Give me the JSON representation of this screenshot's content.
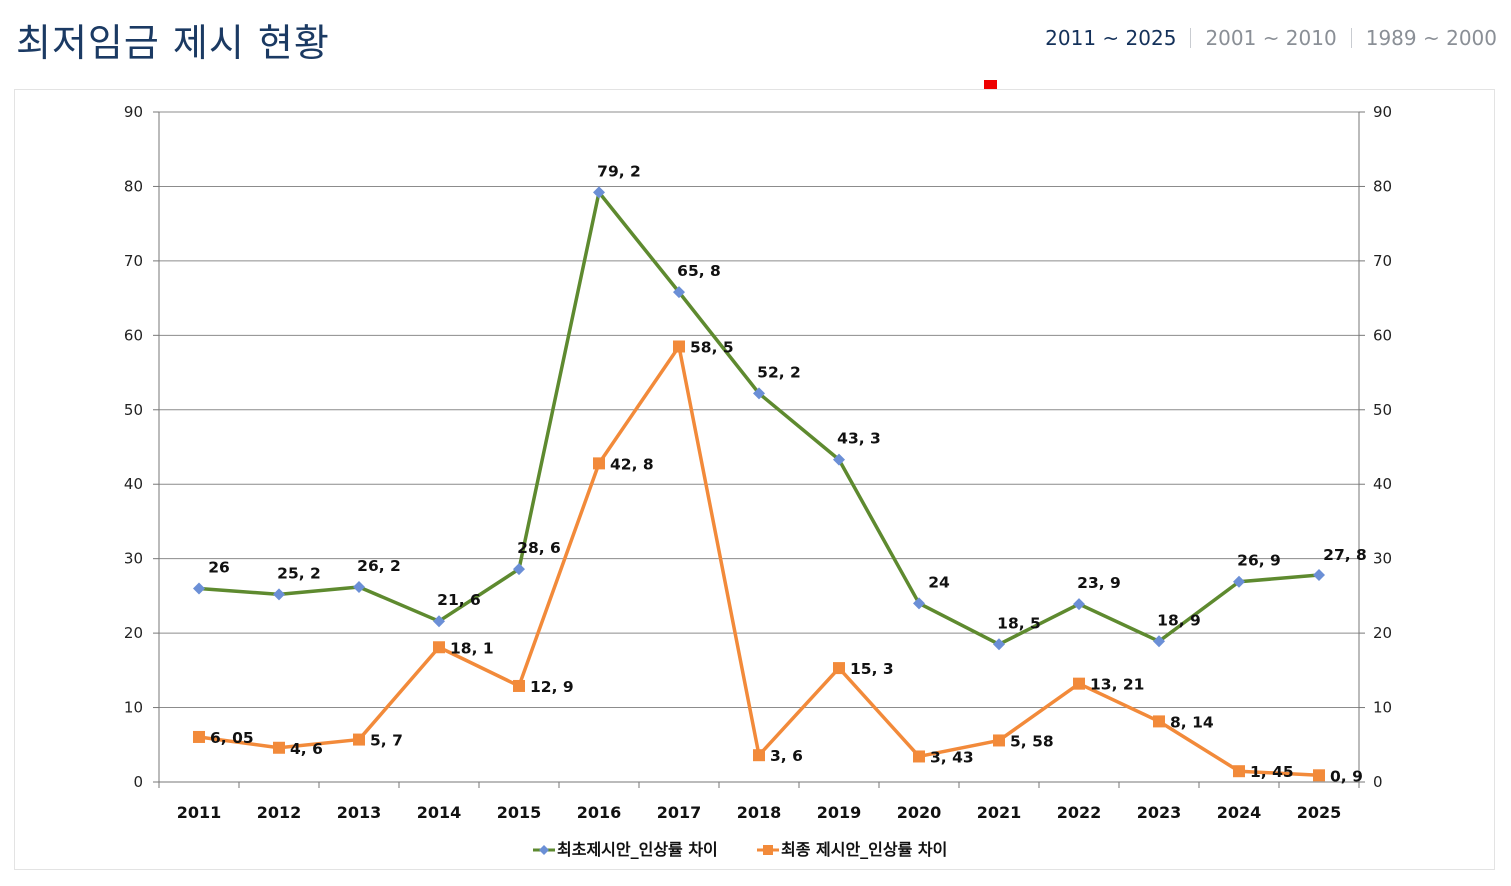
{
  "page": {
    "title": "최저임금 제시 현황",
    "tabs": [
      {
        "label": "2011 ~ 2025",
        "active": true
      },
      {
        "label": "2001 ~ 2010",
        "active": false
      },
      {
        "label": "1989 ~ 2000",
        "active": false
      }
    ]
  },
  "chart_data": {
    "type": "line",
    "title": "",
    "xlabel": "",
    "ylabel": "",
    "categories": [
      "2011",
      "2012",
      "2013",
      "2014",
      "2015",
      "2016",
      "2017",
      "2018",
      "2019",
      "2020",
      "2021",
      "2022",
      "2023",
      "2024",
      "2025"
    ],
    "series": [
      {
        "name": "최초제시안_인상률 차이",
        "color": "#5e8a2f",
        "marker": "diamond",
        "marker_color": "#6b8fd6",
        "values": [
          26,
          25.2,
          26.2,
          21.6,
          28.6,
          79.2,
          65.8,
          52.2,
          43.3,
          24,
          18.5,
          23.9,
          18.9,
          26.9,
          27.8
        ],
        "labels": [
          "26",
          "25, 2",
          "26, 2",
          "21, 6",
          "28, 6",
          "79, 2",
          "65, 8",
          "52, 2",
          "43, 3",
          "24",
          "18, 5",
          "23, 9",
          "18, 9",
          "26, 9",
          "27, 8"
        ]
      },
      {
        "name": "최종 제시안_인상률 차이",
        "color": "#f28a3a",
        "marker": "square",
        "marker_color": "#f28a3a",
        "values": [
          6.05,
          4.6,
          5.7,
          18.1,
          12.9,
          42.8,
          58.5,
          3.6,
          15.3,
          3.43,
          5.58,
          13.21,
          8.14,
          1.45,
          0.9
        ],
        "labels": [
          "6, 05",
          "4, 6",
          "5, 7",
          "18, 1",
          "12, 9",
          "42, 8",
          "58, 5",
          "3, 6",
          "15, 3",
          "3, 43",
          "5, 58",
          "13, 21",
          "8, 14",
          "1, 45",
          "0, 9"
        ]
      }
    ],
    "ylim": [
      0,
      90
    ],
    "yticks": [
      0,
      10,
      20,
      30,
      40,
      50,
      60,
      70,
      80,
      90
    ],
    "secondary_yticks": [
      0,
      10,
      20,
      30,
      40,
      50,
      60,
      70,
      80,
      90
    ],
    "grid": true,
    "legend_position": "bottom",
    "colors": {
      "grid": "#8c8c8c",
      "axis": "#777777",
      "title": "#1b3a63",
      "highlight": "#ee0000"
    }
  }
}
